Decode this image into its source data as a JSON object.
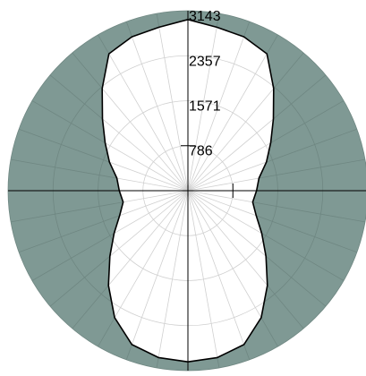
{
  "chart_data": {
    "type": "polar",
    "rlim": [
      0,
      3143
    ],
    "r_ticks": [
      786,
      1571,
      2357,
      3143
    ],
    "r_tick_labels": [
      "786",
      "1571",
      "2357",
      "3143"
    ],
    "angle_grid_deg": 10,
    "grid": true,
    "series": [
      {
        "angles_deg": [
          0,
          10,
          20,
          30,
          40,
          50,
          60,
          70,
          80,
          90,
          100,
          110,
          120,
          130,
          140,
          150,
          160,
          170,
          180
        ],
        "values": [
          2990,
          2960,
          2860,
          2560,
          2160,
          1780,
          1490,
          1270,
          1150,
          1200,
          1260,
          1460,
          1670,
          1950,
          2330,
          2760,
          2860,
          2900,
          2990
        ]
      }
    ],
    "colors": {
      "background": "#7f9994",
      "fill": "#ffffff",
      "outline": "#000000",
      "grid_on_background": "#6f8782",
      "grid_on_fill": "#d0d0d0",
      "axes": "#000000"
    }
  }
}
